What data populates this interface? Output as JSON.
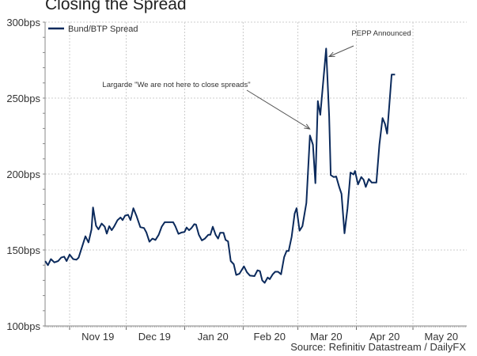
{
  "chart_data": {
    "type": "line",
    "title": "Closing the Spread",
    "source": "Source: Refinitiv Datastream / DailyFX",
    "x_unit": "days since 2019-10-01",
    "xlim": [
      18,
      241.5
    ],
    "ylim": [
      100,
      300
    ],
    "grid": true,
    "legend_placement": "top-left",
    "yticks": [
      {
        "value": 100,
        "label": "100bps"
      },
      {
        "value": 150,
        "label": "150bps"
      },
      {
        "value": 200,
        "label": "200bps"
      },
      {
        "value": 250,
        "label": "250bps"
      },
      {
        "value": 300,
        "label": "300bps"
      }
    ],
    "month_starts": [
      31,
      61,
      92,
      123,
      152,
      183,
      213
    ],
    "xticks": [
      {
        "value": 46,
        "label": "Nov 19"
      },
      {
        "value": 76,
        "label": "Dec 19"
      },
      {
        "value": 107,
        "label": "Jan 20"
      },
      {
        "value": 137,
        "label": "Feb 20"
      },
      {
        "value": 167,
        "label": "Mar 20"
      },
      {
        "value": 198,
        "label": "Apr 20"
      },
      {
        "value": 228,
        "label": "May 20"
      }
    ],
    "series": [
      {
        "name": "Bund/BTP Spread",
        "color": "#0b2a5c",
        "x": [
          18.1,
          19.5,
          21.1,
          22.9,
          24.9,
          26.5,
          28.1,
          29.4,
          31,
          32.9,
          34.6,
          35.8,
          37,
          39.4,
          41,
          42.6,
          43.4,
          45,
          46.3,
          48,
          49.6,
          50.7,
          52,
          53.3,
          54.7,
          56.4,
          58,
          59.1,
          60.4,
          62,
          63.3,
          64.8,
          66.4,
          68.5,
          70.4,
          71.7,
          73.3,
          74.9,
          76.5,
          78.2,
          79.8,
          81.4,
          83,
          85.9,
          87,
          88.7,
          90.3,
          91.9,
          93,
          94.3,
          95.6,
          97.1,
          98,
          99.5,
          101.1,
          102.7,
          104.5,
          105.6,
          106.9,
          108.4,
          109.7,
          110.8,
          112.6,
          113.7,
          115,
          116.4,
          118,
          119.3,
          121,
          123.4,
          125,
          126.6,
          129,
          130.6,
          131.9,
          133.1,
          134.4,
          136,
          137.1,
          138.7,
          140,
          141.5,
          143.1,
          144.7,
          146,
          147.1,
          148.7,
          150.3,
          151.3,
          152.9,
          154.4,
          156.5,
          158.4,
          160,
          161.3,
          162.6,
          163.9,
          167,
          168.6,
          169.4,
          171,
          172.3,
          173.9,
          175.1,
          176.7,
          178.3,
          179.9,
          181.5,
          182.3,
          183.9,
          185.6,
          186.8,
          188,
          189.6,
          191.2,
          193.6,
          195.2,
          196.9,
          198.2,
          199.3,
          201.7,
          203.5
        ],
        "values": [
          142.7,
          140,
          144,
          141.8,
          142.7,
          145,
          145.6,
          142.7,
          147,
          144,
          143.6,
          145,
          149.7,
          159,
          155,
          163.6,
          178,
          166,
          163.6,
          167.4,
          165.3,
          160.8,
          165.7,
          163,
          165.7,
          169.7,
          171.4,
          169.7,
          172.6,
          173.2,
          169.7,
          177.5,
          172.6,
          165,
          164.5,
          161.5,
          155.4,
          157.5,
          156.6,
          160,
          165.3,
          168.3,
          168.3,
          168.3,
          165.7,
          160.6,
          161.5,
          161.8,
          164.8,
          163,
          164.5,
          167,
          166.7,
          160,
          156.3,
          157.5,
          160,
          160,
          165.3,
          160,
          157.5,
          161.3,
          161.3,
          156.6,
          155.7,
          142.7,
          140.6,
          133.6,
          134.3,
          139.2,
          135.3,
          133.1,
          132.8,
          136.6,
          136.1,
          130,
          128.4,
          131.9,
          130.8,
          134,
          135.7,
          135.7,
          134,
          145.3,
          149.3,
          149.3,
          158.7,
          174,
          177.5,
          162.7,
          165.7,
          181,
          225.4,
          219.3,
          194,
          248,
          239,
          282.6,
          238,
          199.3,
          198,
          198.4,
          191.5,
          187,
          161,
          177.5,
          201,
          199.7,
          202,
          193.2,
          198,
          196.3,
          191.5,
          196.7,
          194.4,
          194.4,
          219.3,
          236.8,
          233,
          226.6,
          265.5,
          265.5
        ]
      }
    ],
    "annotations": [
      {
        "text": "PEPP Announced",
        "target_x": 167.3,
        "target_y": 281
      },
      {
        "text": "Largarde \"We are not here to close spreads\"",
        "target_x": 159.6,
        "target_y": 238
      }
    ]
  }
}
